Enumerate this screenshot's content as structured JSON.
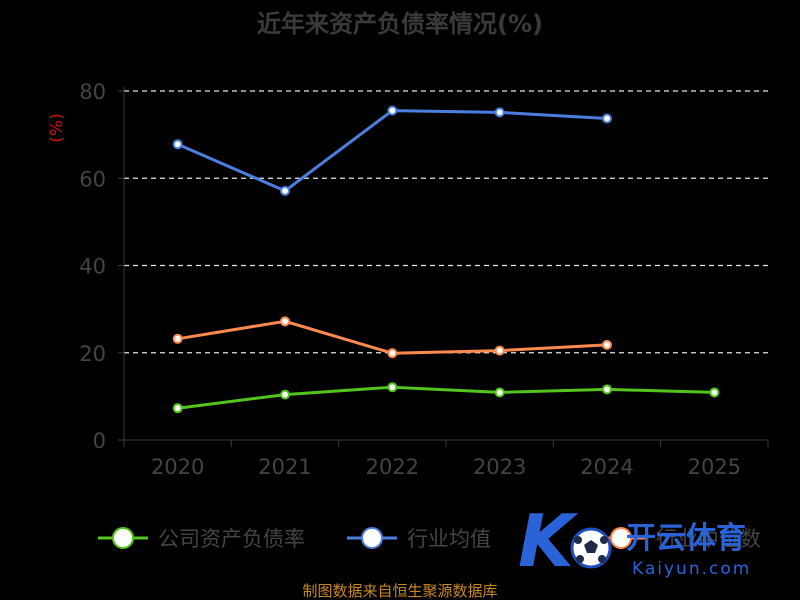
{
  "chart_data": {
    "type": "line",
    "title": "近年来资产负债率情况(%)",
    "ylabel": "(%)",
    "xlabel": "",
    "categories": [
      "2020",
      "2021",
      "2022",
      "2023",
      "2024",
      "2025"
    ],
    "ylim": [
      0,
      80
    ],
    "yticks": [
      0,
      20,
      40,
      60,
      80
    ],
    "grid": true,
    "legend_position": "bottom",
    "series": [
      {
        "name": "公司资产负债率",
        "color": "#52c41a",
        "values": [
          7.3,
          10.4,
          12.1,
          10.9,
          11.6,
          10.9
        ]
      },
      {
        "name": "行业均值",
        "color": "#4a7fe0",
        "values": [
          67.8,
          57.1,
          75.5,
          75.1,
          73.7,
          null
        ]
      },
      {
        "name": "行业中位数",
        "color": "#ff8a50",
        "values": [
          23.2,
          27.2,
          19.9,
          20.5,
          21.8,
          null
        ]
      }
    ]
  },
  "source_text": "制图数据来自恒生聚源数据库",
  "watermark": {
    "brand": "开云体育",
    "sub": "Kaiyun.com",
    "logo_letter": "K",
    "logo_icon": "soccer-ball-icon"
  }
}
